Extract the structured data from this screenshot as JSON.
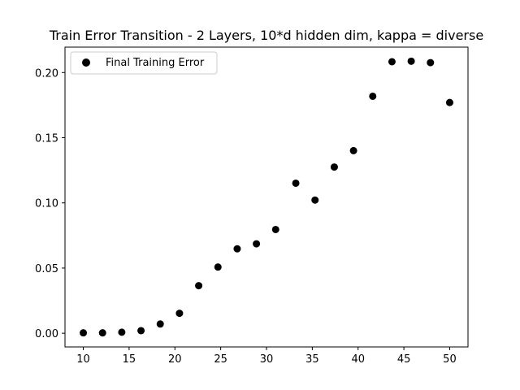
{
  "chart_data": {
    "type": "scatter",
    "title": "Train Error Transition - 2 Layers, 10*d hidden dim, kappa = diverse",
    "xlabel": "",
    "ylabel": "",
    "xlim": [
      8.0,
      52.0
    ],
    "ylim": [
      -0.0105,
      0.2195
    ],
    "xticks": [
      10,
      15,
      20,
      25,
      30,
      35,
      40,
      45,
      50
    ],
    "yticks": [
      0.0,
      0.05,
      0.1,
      0.15,
      0.2
    ],
    "ytick_labels": [
      "0.00",
      "0.05",
      "0.10",
      "0.15",
      "0.20"
    ],
    "grid": false,
    "legend": {
      "position": "top-left"
    },
    "series": [
      {
        "name": "Final Training Error",
        "color": "#000000",
        "x": [
          10.0,
          12.1,
          14.2,
          16.3,
          18.4,
          20.5,
          22.6,
          24.7,
          26.8,
          28.9,
          31.0,
          33.2,
          35.3,
          37.4,
          39.5,
          41.6,
          43.7,
          45.8,
          47.9,
          50.0
        ],
        "y": [
          0.0003,
          0.0003,
          0.0008,
          0.002,
          0.0071,
          0.0153,
          0.0365,
          0.0508,
          0.0648,
          0.0686,
          0.0796,
          0.1151,
          0.1022,
          0.1275,
          0.1401,
          0.1818,
          0.2083,
          0.2087,
          0.2076,
          0.177
        ]
      }
    ]
  }
}
